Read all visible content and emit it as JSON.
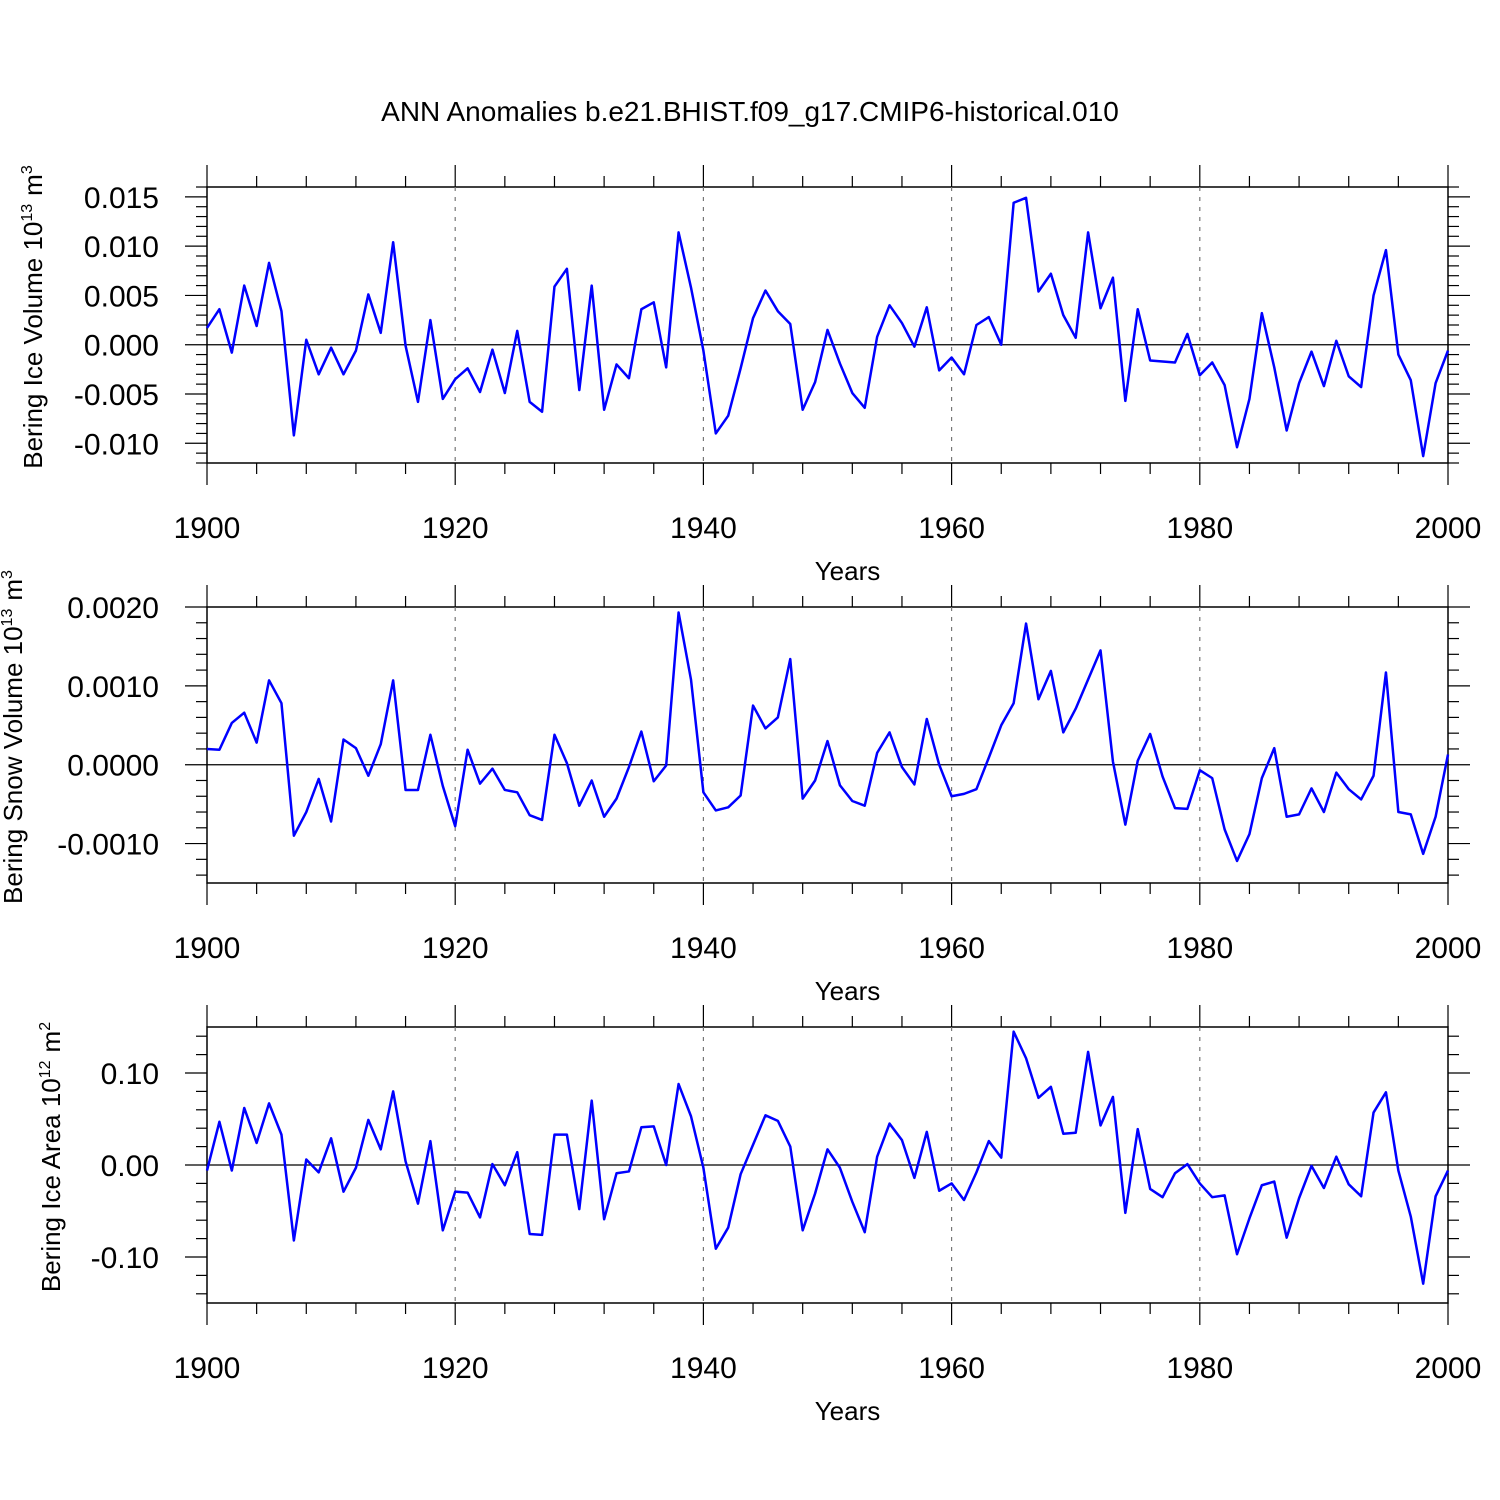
{
  "title": "ANN Anomalies b.e21.BHIST.f09_g17.CMIP6-historical.010",
  "colors": {
    "line": "#0000ff",
    "grid": "#777777",
    "frame": "#000000"
  },
  "chart_data": [
    {
      "type": "line",
      "ylabel": "Bering Ice Volume",
      "ylabel_unit": "10",
      "ylabel_exp": "13",
      "ylabel_unit_after": "m",
      "ylabel_unit_exp": "3",
      "xlabel": "Years",
      "xlim": [
        1900,
        2000
      ],
      "ylim": [
        -0.012,
        0.016
      ],
      "x_ticks": [
        1900,
        1920,
        1940,
        1960,
        1980,
        2000
      ],
      "x_tick_labels": [
        "1900",
        "1920",
        "1940",
        "1960",
        "1980",
        "2000"
      ],
      "y_ticks": [
        -0.01,
        -0.005,
        0.0,
        0.005,
        0.01,
        0.015
      ],
      "y_tick_labels": [
        "-0.010",
        "-0.005",
        "0.000",
        "0.005",
        "0.010",
        "0.015"
      ],
      "y_minor_step": 0.001,
      "grid_x": [
        1920,
        1940,
        1960,
        1980
      ],
      "x_start": 1900,
      "values": [
        0.0017,
        0.0036,
        -0.0008,
        0.006,
        0.0019,
        0.0083,
        0.0034,
        -0.0092,
        0.0005,
        -0.003,
        -0.0003,
        -0.003,
        -0.0006,
        0.0051,
        0.0012,
        0.0104,
        -0.0001,
        -0.0058,
        0.0025,
        -0.0055,
        -0.0035,
        -0.0024,
        -0.0048,
        -0.0005,
        -0.0049,
        0.0014,
        -0.0058,
        -0.0068,
        0.0059,
        0.0077,
        -0.0046,
        0.006,
        -0.0066,
        -0.002,
        -0.0034,
        0.0036,
        0.0043,
        -0.0023,
        0.0114,
        0.0058,
        -0.0006,
        -0.009,
        -0.0072,
        -0.0024,
        0.0027,
        0.0055,
        0.0034,
        0.0021,
        -0.0066,
        -0.0038,
        0.0015,
        -0.0019,
        -0.0049,
        -0.0064,
        0.0008,
        0.004,
        0.0022,
        -0.0002,
        0.0038,
        -0.0026,
        -0.0013,
        -0.003,
        0.002,
        0.0028,
        0.0,
        0.0144,
        0.0149,
        0.0054,
        0.0072,
        0.003,
        0.0007,
        0.0114,
        0.0037,
        0.0068,
        -0.0057,
        0.0036,
        -0.0016,
        -0.0017,
        -0.0018,
        0.0011,
        -0.0031,
        -0.0018,
        -0.0041,
        -0.0104,
        -0.0055,
        0.0032,
        -0.0023,
        -0.0087,
        -0.0039,
        -0.0007,
        -0.0042,
        0.0004,
        -0.0032,
        -0.0043,
        0.005,
        0.0096,
        -0.001,
        -0.0036,
        -0.0113,
        -0.0039,
        -0.0006
      ]
    },
    {
      "type": "line",
      "ylabel": "Bering Snow Volume",
      "ylabel_unit": "10",
      "ylabel_exp": "13",
      "ylabel_unit_after": "m",
      "ylabel_unit_exp": "3",
      "xlabel": "Years",
      "xlim": [
        1900,
        2000
      ],
      "ylim": [
        -0.0015,
        0.002
      ],
      "x_ticks": [
        1900,
        1920,
        1940,
        1960,
        1980,
        2000
      ],
      "x_tick_labels": [
        "1900",
        "1920",
        "1940",
        "1960",
        "1980",
        "2000"
      ],
      "y_ticks": [
        -0.001,
        0.0,
        0.001,
        0.002
      ],
      "y_tick_labels": [
        "-0.0010",
        "0.0000",
        "0.0010",
        "0.0020"
      ],
      "y_minor_step": 0.0002,
      "grid_x": [
        1920,
        1940,
        1960,
        1980
      ],
      "x_start": 1900,
      "values": [
        0.0002,
        0.00019,
        0.00053,
        0.00066,
        0.00028,
        0.00107,
        0.00078,
        -0.0009,
        -0.0006,
        -0.00018,
        -0.00072,
        0.00032,
        0.00021,
        -0.00014,
        0.00026,
        0.00107,
        -0.00032,
        -0.00032,
        0.00038,
        -0.00027,
        -0.00078,
        0.00019,
        -0.00024,
        -5e-05,
        -0.00032,
        -0.00035,
        -0.00064,
        -0.0007,
        0.00038,
        2e-05,
        -0.00052,
        -0.0002,
        -0.00066,
        -0.00043,
        -3e-05,
        0.00042,
        -0.00021,
        -1e-05,
        0.00193,
        0.00108,
        -0.00035,
        -0.00058,
        -0.00054,
        -0.00039,
        0.00075,
        0.00046,
        0.0006,
        0.00134,
        -0.00043,
        -0.0002,
        0.0003,
        -0.00026,
        -0.00046,
        -0.00052,
        0.00015,
        0.00041,
        -3e-05,
        -0.00025,
        0.00058,
        0.0,
        -0.0004,
        -0.00037,
        -0.00031,
        9e-05,
        0.0005,
        0.00078,
        0.00179,
        0.00083,
        0.00119,
        0.00041,
        0.00071,
        0.00108,
        0.00145,
        4e-05,
        -0.00076,
        5e-05,
        0.00039,
        -0.00015,
        -0.00055,
        -0.00056,
        -7e-05,
        -0.00017,
        -0.00082,
        -0.00122,
        -0.00088,
        -0.00017,
        0.00021,
        -0.00066,
        -0.00063,
        -0.0003,
        -0.0006,
        -0.0001,
        -0.00031,
        -0.00044,
        -0.00014,
        0.00117,
        -0.0006,
        -0.00063,
        -0.00113,
        -0.00066,
        0.00013
      ]
    },
    {
      "type": "line",
      "ylabel": "Bering Ice Area",
      "ylabel_unit": "10",
      "ylabel_exp": "12",
      "ylabel_unit_after": "m",
      "ylabel_unit_exp": "2",
      "xlabel": "Years",
      "xlim": [
        1900,
        2000
      ],
      "ylim": [
        -0.15,
        0.15
      ],
      "x_ticks": [
        1900,
        1920,
        1940,
        1960,
        1980,
        2000
      ],
      "x_tick_labels": [
        "1900",
        "1920",
        "1940",
        "1960",
        "1980",
        "2000"
      ],
      "y_ticks": [
        -0.1,
        0.0,
        0.1
      ],
      "y_tick_labels": [
        "-0.10",
        "0.00",
        "0.10"
      ],
      "y_minor_step": 0.02,
      "grid_x": [
        1920,
        1940,
        1960,
        1980
      ],
      "x_start": 1900,
      "values": [
        -0.006,
        0.047,
        -0.006,
        0.062,
        0.024,
        0.067,
        0.033,
        -0.082,
        0.006,
        -0.008,
        0.029,
        -0.029,
        -0.003,
        0.049,
        0.017,
        0.08,
        0.004,
        -0.042,
        0.026,
        -0.071,
        -0.029,
        -0.03,
        -0.057,
        0.001,
        -0.022,
        0.014,
        -0.075,
        -0.076,
        0.033,
        0.033,
        -0.048,
        0.07,
        -0.059,
        -0.009,
        -0.007,
        0.041,
        0.042,
        0.0,
        0.088,
        0.053,
        -0.003,
        -0.091,
        -0.068,
        -0.01,
        0.022,
        0.054,
        0.048,
        0.02,
        -0.071,
        -0.031,
        0.017,
        -0.003,
        -0.04,
        -0.073,
        0.009,
        0.045,
        0.027,
        -0.014,
        0.036,
        -0.028,
        -0.02,
        -0.038,
        -0.008,
        0.026,
        0.008,
        0.145,
        0.116,
        0.073,
        0.085,
        0.034,
        0.035,
        0.123,
        0.043,
        0.074,
        -0.052,
        0.039,
        -0.026,
        -0.035,
        -0.009,
        0.001,
        -0.02,
        -0.035,
        -0.033,
        -0.097,
        -0.058,
        -0.022,
        -0.018,
        -0.079,
        -0.036,
        -0.001,
        -0.025,
        0.009,
        -0.021,
        -0.034,
        0.057,
        0.079,
        -0.006,
        -0.056,
        -0.129,
        -0.034,
        -0.006
      ]
    }
  ]
}
